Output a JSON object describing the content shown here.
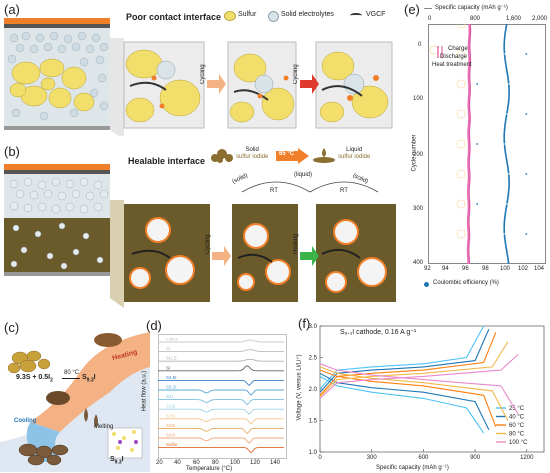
{
  "panel_a": {
    "label": "(a)",
    "title": "Poor contact interface",
    "legend": [
      "Sulfur",
      "Solid electrolytes",
      "VGCF"
    ],
    "arrow_labels": [
      "Cycling",
      "Cycling"
    ]
  },
  "panel_b": {
    "label": "(b)",
    "title": "Healable interface",
    "solid_label": [
      "Solid",
      "sulfur iodide"
    ],
    "temp_label": "65 °C",
    "liquid_label": [
      "Liquid",
      "sulfur iodide"
    ],
    "arc_solid_left": "(solid)",
    "arc_liquid": "(liquid)",
    "arc_solid_right": "(solid)",
    "rt_left": "RT",
    "rt_right": "RT",
    "arrow_labels": [
      "Cycling",
      "Healing"
    ]
  },
  "panel_c": {
    "label": "(c)",
    "equation": "9.3S + 0.5I",
    "eq_sub": "2",
    "eq_temp": "80 °C",
    "product": "S",
    "product_sub": "9.3",
    "product_end": "I",
    "heating": "Heating",
    "melting": "Melting",
    "cooling": "Cooling",
    "final": "S",
    "final_sub": "9.3",
    "final_end": "I"
  },
  "panel_d": {
    "label": "(d)",
    "ylabel": "Heat flow (a.u.)",
    "xlabel": "Temperature (°C)",
    "xticks": [
      "20",
      "40",
      "60",
      "80",
      "100",
      "120",
      "140"
    ],
    "curve_labels": [
      "Iodine",
      "SI",
      "SI1.5",
      "SI",
      "S4.5I",
      "S9.3I",
      "S1I",
      "S12I",
      "S15I",
      "S25I",
      "S40I",
      "Sulfur"
    ]
  },
  "panel_e": {
    "label": "(e)",
    "top_axis_title": "Specific capacity (mAh g⁻¹)",
    "top_ticks": [
      "0",
      "800",
      "1,600",
      "2,000"
    ],
    "bottom_axis_title": "Coulombic efficiency (%)",
    "bottom_ticks": [
      "92",
      "94",
      "96",
      "98",
      "100",
      "102",
      "104"
    ],
    "ylabel": "Cycle number",
    "yticks": [
      "0",
      "100",
      "200",
      "300",
      "400"
    ],
    "legend": [
      "Charge",
      "Discharge",
      "Heat treatment"
    ]
  },
  "panel_f": {
    "label": "(f)",
    "inset_title": "S₉.₃I cathode, 0.16 A g⁻¹",
    "ylabel": "Voltage (V, versus Li/Li⁺)",
    "xlabel": "Specific capacity (mAh g⁻¹)",
    "colors": {
      "25": "#4fc3f7",
      "40": "#1f77b4",
      "60": "#ff7f0e",
      "80": "#f2b84b",
      "100": "#e88ac9"
    }
  },
  "chart_data": [
    {
      "type": "line",
      "title": "",
      "xlabel": "Temperature (°C)",
      "ylabel": "Heat flow (a.u.)",
      "xlim": [
        20,
        150
      ],
      "x": [
        20,
        40,
        60,
        80,
        100,
        120,
        140
      ],
      "series": [
        {
          "name": "Iodine",
          "values": [
            0.2,
            0.2,
            0.2,
            0.25,
            0.3,
            0.55,
            0.3
          ]
        },
        {
          "name": "Sulfur",
          "values": [
            0,
            0,
            0,
            0,
            0.1,
            -0.9,
            0
          ]
        }
      ]
    },
    {
      "type": "scatter",
      "xlabel": "Specific capacity (mAh g⁻¹) / Coulombic efficiency (%)",
      "ylabel": "Cycle number",
      "ylim": [
        400,
        0
      ],
      "x_capacity_lim": [
        0,
        2000
      ],
      "x_ce_lim": [
        92,
        104
      ],
      "series": [
        {
          "name": "Charge",
          "x": [
            0,
            100,
            200,
            300,
            400
          ],
          "capacity": [
            1490,
            1470,
            1460,
            1460,
            1450
          ]
        },
        {
          "name": "Discharge",
          "x": [
            0,
            100,
            200,
            300,
            400
          ],
          "capacity": [
            700,
            700,
            700,
            690,
            680
          ]
        }
      ]
    },
    {
      "type": "line",
      "title": "S9.3I cathode, 0.16 A g⁻¹",
      "xlabel": "Specific capacity (mAh g⁻¹)",
      "ylabel": "Voltage (V, versus Li/Li⁺)",
      "xlim": [
        0,
        1300
      ],
      "ylim": [
        1.0,
        3.0
      ],
      "xticks": [
        0,
        300,
        600,
        900,
        1200
      ],
      "yticks": [
        1.0,
        1.5,
        2.0,
        2.5,
        3.0
      ],
      "series": [
        {
          "name": "25 °C",
          "x": [
            0,
            100,
            300,
            600,
            850,
            950
          ],
          "discharge": [
            2.2,
            2.05,
            1.95,
            1.85,
            1.7,
            1.3
          ],
          "charge": [
            2.0,
            2.3,
            2.35,
            2.4,
            2.5,
            3.0
          ]
        },
        {
          "name": "40 °C",
          "x": [
            0,
            100,
            300,
            600,
            900,
            980
          ],
          "discharge": [
            2.25,
            2.1,
            2.02,
            1.95,
            1.8,
            1.35
          ],
          "charge": [
            1.95,
            2.25,
            2.3,
            2.35,
            2.45,
            2.95
          ]
        },
        {
          "name": "60 °C",
          "x": [
            0,
            100,
            300,
            600,
            950,
            1020
          ],
          "discharge": [
            2.3,
            2.2,
            2.12,
            2.05,
            1.9,
            1.4
          ],
          "charge": [
            1.9,
            2.2,
            2.25,
            2.3,
            2.42,
            2.9
          ]
        },
        {
          "name": "80 °C",
          "x": [
            0,
            100,
            300,
            600,
            1000,
            1090
          ],
          "discharge": [
            2.35,
            2.25,
            2.17,
            2.1,
            1.97,
            1.5
          ],
          "charge": [
            1.88,
            2.15,
            2.2,
            2.25,
            2.35,
            2.75
          ]
        },
        {
          "name": "100 °C",
          "x": [
            0,
            100,
            300,
            600,
            1050,
            1150
          ],
          "discharge": [
            2.4,
            2.3,
            2.22,
            2.15,
            2.05,
            1.6
          ],
          "charge": [
            1.85,
            2.1,
            2.15,
            2.2,
            2.3,
            2.55
          ]
        }
      ]
    }
  ]
}
